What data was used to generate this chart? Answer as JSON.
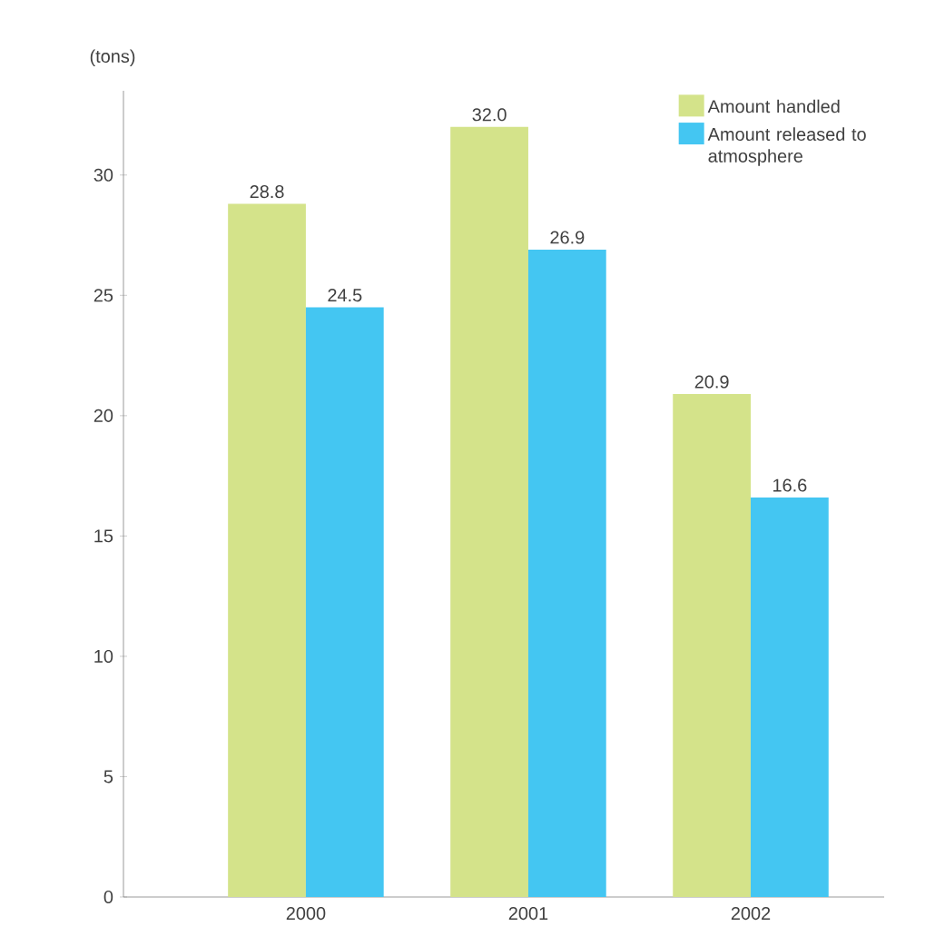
{
  "chart_data": {
    "type": "bar",
    "ylabel": "(tons)",
    "categories": [
      "2000",
      "2001",
      "2002"
    ],
    "series": [
      {
        "name": "Amount handled",
        "color": "#d4e38a",
        "values": [
          28.8,
          32.0,
          20.9
        ],
        "value_labels": [
          "28.8",
          "32.0",
          "20.9"
        ]
      },
      {
        "name": "Amount released to atmosphere",
        "color": "#44c6f2",
        "values": [
          24.5,
          26.9,
          16.6
        ],
        "value_labels": [
          "24.5",
          "26.9",
          "16.6"
        ]
      }
    ],
    "ylim": [
      0,
      33.5
    ],
    "yticks": [
      0,
      5,
      10,
      15,
      20,
      25,
      30
    ],
    "legend": "top right"
  }
}
